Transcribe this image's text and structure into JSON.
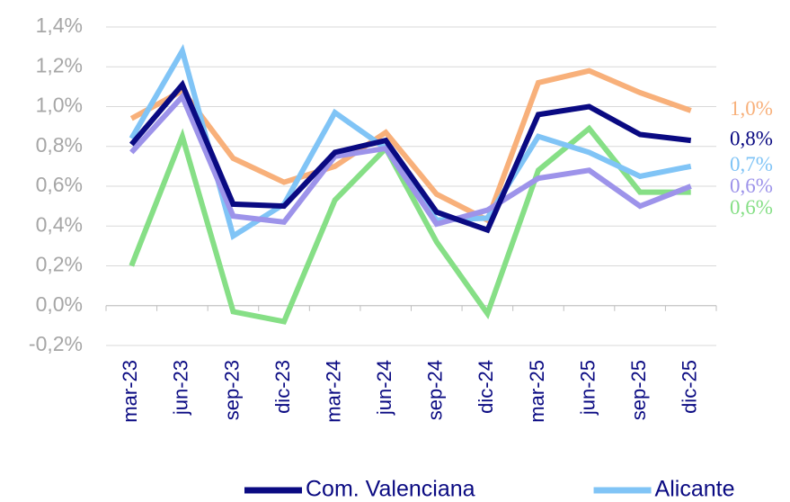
{
  "chart_data": {
    "type": "line",
    "categories": [
      "mar-23",
      "jun-23",
      "sep-23",
      "dic-23",
      "mar-24",
      "jun-24",
      "sep-24",
      "dic-24",
      "mar-25",
      "jun-25",
      "sep-25",
      "dic-25"
    ],
    "ylim": [
      -0.2,
      1.4
    ],
    "yticks": [
      {
        "value": -0.2,
        "label": "-0,2%"
      },
      {
        "value": 0,
        "label": "0,0%"
      },
      {
        "value": 0.2,
        "label": "0,2%"
      },
      {
        "value": 0.4,
        "label": "0,4%"
      },
      {
        "value": 0.6,
        "label": "0,6%"
      },
      {
        "value": 0.8,
        "label": "0,8%"
      },
      {
        "value": 1.0,
        "label": "1,0%"
      },
      {
        "value": 1.2,
        "label": "1,2%"
      },
      {
        "value": 1.4,
        "label": "1,4%"
      }
    ],
    "grid": true,
    "series": [
      {
        "color": "#f8b07a",
        "values": [
          0.94,
          1.08,
          0.74,
          0.62,
          0.7,
          0.87,
          0.56,
          0.43,
          1.12,
          1.18,
          1.07,
          0.98
        ],
        "value_labels": [
          null,
          null,
          null,
          null,
          null,
          null,
          null,
          null,
          null,
          null,
          null,
          "1,0%"
        ]
      },
      {
        "color": "#86df86",
        "values": [
          0.2,
          0.85,
          -0.03,
          -0.08,
          0.53,
          0.79,
          0.32,
          -0.04,
          0.68,
          0.89,
          0.57,
          0.57
        ],
        "value_labels": [
          null,
          null,
          null,
          null,
          null,
          null,
          null,
          null,
          null,
          null,
          null,
          "0,6%"
        ]
      },
      {
        "name": "Alicante",
        "color": "#80c4f6",
        "values": [
          0.84,
          1.28,
          0.35,
          0.51,
          0.97,
          0.79,
          0.43,
          0.44,
          0.85,
          0.77,
          0.65,
          0.7
        ],
        "value_labels": [
          null,
          null,
          null,
          null,
          null,
          null,
          null,
          null,
          null,
          null,
          null,
          "0,7%"
        ]
      },
      {
        "color": "#9d93ea",
        "values": [
          0.77,
          1.05,
          0.45,
          0.42,
          0.75,
          0.79,
          0.41,
          0.48,
          0.64,
          0.68,
          0.5,
          0.6
        ],
        "value_labels": [
          null,
          null,
          null,
          null,
          null,
          null,
          null,
          null,
          null,
          null,
          null,
          "0,6%"
        ]
      },
      {
        "name": "Com. Valenciana",
        "color": "#0a0a82",
        "values": [
          0.81,
          1.11,
          0.51,
          0.5,
          0.77,
          0.83,
          0.47,
          0.38,
          0.96,
          1.0,
          0.86,
          0.83
        ],
        "value_labels": [
          null,
          null,
          null,
          null,
          null,
          null,
          null,
          null,
          null,
          null,
          null,
          "0,8%"
        ]
      }
    ]
  }
}
